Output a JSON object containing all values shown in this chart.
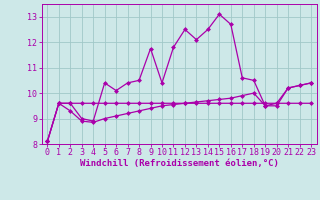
{
  "x": [
    0,
    1,
    2,
    3,
    4,
    5,
    6,
    7,
    8,
    9,
    10,
    11,
    12,
    13,
    14,
    15,
    16,
    17,
    18,
    19,
    20,
    21,
    22,
    23
  ],
  "line_wavy": [
    8.1,
    9.6,
    9.6,
    9.0,
    8.9,
    10.4,
    10.1,
    10.4,
    10.5,
    11.75,
    10.4,
    11.8,
    12.5,
    12.1,
    12.5,
    13.1,
    12.7,
    10.6,
    10.5,
    9.5,
    9.5,
    10.2,
    10.3,
    10.4
  ],
  "line_flat": [
    8.1,
    9.6,
    9.6,
    9.6,
    9.6,
    9.6,
    9.6,
    9.6,
    9.6,
    9.6,
    9.6,
    9.6,
    9.6,
    9.6,
    9.6,
    9.6,
    9.6,
    9.6,
    9.6,
    9.6,
    9.6,
    9.6,
    9.6,
    9.6
  ],
  "line_diag": [
    8.1,
    9.6,
    9.3,
    8.9,
    8.85,
    9.0,
    9.1,
    9.2,
    9.3,
    9.4,
    9.5,
    9.55,
    9.6,
    9.65,
    9.7,
    9.75,
    9.8,
    9.9,
    10.0,
    9.5,
    9.6,
    10.2,
    10.3,
    10.4
  ],
  "bg_color": "#cde8e8",
  "grid_color": "#a0c8c8",
  "line_color": "#aa00aa",
  "xlabel": "Windchill (Refroidissement éolien,°C)",
  "ylim": [
    8,
    13.5
  ],
  "xlim": [
    -0.5,
    23.5
  ],
  "yticks": [
    8,
    9,
    10,
    11,
    12,
    13
  ],
  "xticks": [
    0,
    1,
    2,
    3,
    4,
    5,
    6,
    7,
    8,
    9,
    10,
    11,
    12,
    13,
    14,
    15,
    16,
    17,
    18,
    19,
    20,
    21,
    22,
    23
  ],
  "markersize": 2.5,
  "linewidth": 0.9,
  "xlabel_fontsize": 6.5,
  "tick_fontsize": 6.0
}
